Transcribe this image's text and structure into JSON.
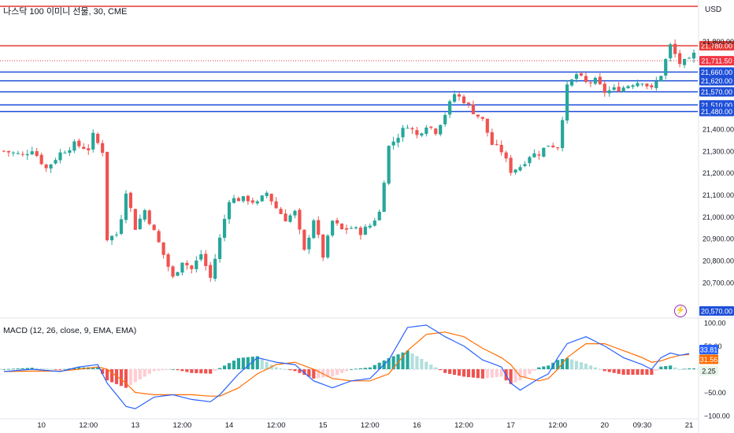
{
  "header": {
    "title": "나스닥 100 이미니 선물, 30, CME",
    "currency": "USD",
    "macd_title": "MACD (12, 26, close, 9, EMA, EMA)"
  },
  "colors": {
    "up": "#26a69a",
    "down": "#ef5350",
    "level_blue": "#1e4fd8",
    "level_red": "#e53935",
    "macd_line": "#2962ff",
    "signal_line": "#ff6d00",
    "hist_up": "#26a69a",
    "hist_up_weak": "#b2dfdb",
    "hist_down": "#ef5350",
    "hist_down_weak": "#ffcdd2"
  },
  "chart_data": [
    {
      "type": "candlestick",
      "title": "나스닥 100 이미니 선물, 30, CME",
      "ylim": [
        20570,
        21960
      ],
      "y_ticks": [
        20700,
        20800,
        20900,
        21000,
        21100,
        21200,
        21300,
        21400,
        21800
      ],
      "x_ticks": [
        "10",
        "12:00",
        "13",
        "12:00",
        "14",
        "12:00",
        "15",
        "12:00",
        "16",
        "12:00",
        "17",
        "12:00",
        "20",
        "09:30",
        "21"
      ],
      "x_tick_index": [
        8,
        18,
        28,
        38,
        48,
        58,
        68,
        78,
        88,
        98,
        108,
        118,
        128,
        136,
        146
      ],
      "candle_count": 148,
      "close_path": [
        [
          0,
          21300
        ],
        [
          4,
          21280
        ],
        [
          6,
          21310
        ],
        [
          9,
          21220
        ],
        [
          12,
          21290
        ],
        [
          15,
          21330
        ],
        [
          18,
          21310
        ],
        [
          19,
          21370
        ],
        [
          21,
          21300
        ],
        [
          22,
          20900
        ],
        [
          24,
          20920
        ],
        [
          25,
          21000
        ],
        [
          26,
          21120
        ],
        [
          28,
          20950
        ],
        [
          30,
          21030
        ],
        [
          33,
          20880
        ],
        [
          36,
          20720
        ],
        [
          38,
          20800
        ],
        [
          40,
          20760
        ],
        [
          42,
          20830
        ],
        [
          44,
          20720
        ],
        [
          46,
          20900
        ],
        [
          48,
          21080
        ],
        [
          52,
          21080
        ],
        [
          54,
          21060
        ],
        [
          56,
          21110
        ],
        [
          58,
          21040
        ],
        [
          60,
          20990
        ],
        [
          62,
          21020
        ],
        [
          64,
          20840
        ],
        [
          66,
          20990
        ],
        [
          68,
          20820
        ],
        [
          70,
          20980
        ],
        [
          72,
          20940
        ],
        [
          74,
          20950
        ],
        [
          76,
          20930
        ],
        [
          78,
          20960
        ],
        [
          80,
          21020
        ],
        [
          82,
          21320
        ],
        [
          86,
          21420
        ],
        [
          88,
          21370
        ],
        [
          90,
          21420
        ],
        [
          92,
          21390
        ],
        [
          94,
          21470
        ],
        [
          96,
          21560
        ],
        [
          98,
          21530
        ],
        [
          100,
          21480
        ],
        [
          102,
          21440
        ],
        [
          104,
          21330
        ],
        [
          106,
          21300
        ],
        [
          108,
          21210
        ],
        [
          110,
          21230
        ],
        [
          112,
          21280
        ],
        [
          114,
          21290
        ],
        [
          116,
          21330
        ],
        [
          118,
          21320
        ],
        [
          120,
          21590
        ],
        [
          122,
          21650
        ],
        [
          124,
          21610
        ],
        [
          126,
          21620
        ],
        [
          128,
          21570
        ],
        [
          132,
          21590
        ],
        [
          134,
          21610
        ],
        [
          136,
          21620
        ],
        [
          138,
          21580
        ],
        [
          140,
          21650
        ],
        [
          142,
          21780
        ],
        [
          144,
          21700
        ],
        [
          146,
          21710
        ],
        [
          147,
          21740
        ]
      ],
      "last_price": "21,711.50",
      "horizontal_levels": [
        {
          "value": 21960,
          "label": "",
          "color": "red"
        },
        {
          "value": 21780,
          "label": "21,780.00",
          "color": "red"
        },
        {
          "value": 21660,
          "label": "21,660.00",
          "color": "blue"
        },
        {
          "value": 21620,
          "label": "21,620.00",
          "color": "blue"
        },
        {
          "value": 21570,
          "label": "21,570.00",
          "color": "blue"
        },
        {
          "value": 21510,
          "label": "21,510.00",
          "color": "blue"
        },
        {
          "value": 21480,
          "label": "21,480.00",
          "color": "blue"
        }
      ],
      "bottom_label": "20,570.00",
      "grid": false
    },
    {
      "type": "line",
      "title": "MACD (12, 26, close, 9, EMA, EMA)",
      "ylim": [
        -100,
        100
      ],
      "y_ticks": [
        100,
        50,
        -50,
        -100
      ],
      "macd_path": [
        [
          0,
          -5
        ],
        [
          6,
          0
        ],
        [
          12,
          -5
        ],
        [
          16,
          5
        ],
        [
          20,
          10
        ],
        [
          22,
          -30
        ],
        [
          26,
          -80
        ],
        [
          28,
          -85
        ],
        [
          32,
          -60
        ],
        [
          36,
          -55
        ],
        [
          40,
          -65
        ],
        [
          44,
          -70
        ],
        [
          46,
          -55
        ],
        [
          50,
          -10
        ],
        [
          54,
          25
        ],
        [
          58,
          15
        ],
        [
          62,
          10
        ],
        [
          66,
          -25
        ],
        [
          70,
          -40
        ],
        [
          74,
          -25
        ],
        [
          78,
          -20
        ],
        [
          82,
          20
        ],
        [
          86,
          90
        ],
        [
          90,
          95
        ],
        [
          94,
          70
        ],
        [
          98,
          50
        ],
        [
          102,
          20
        ],
        [
          106,
          5
        ],
        [
          108,
          -30
        ],
        [
          110,
          -45
        ],
        [
          114,
          -20
        ],
        [
          116,
          -10
        ],
        [
          118,
          25
        ],
        [
          120,
          55
        ],
        [
          124,
          70
        ],
        [
          128,
          50
        ],
        [
          132,
          25
        ],
        [
          136,
          10
        ],
        [
          138,
          0
        ],
        [
          140,
          25
        ],
        [
          142,
          35
        ],
        [
          144,
          30
        ],
        [
          146,
          33.81
        ]
      ],
      "signal_path": [
        [
          0,
          -5
        ],
        [
          6,
          -4
        ],
        [
          12,
          -4
        ],
        [
          16,
          0
        ],
        [
          20,
          5
        ],
        [
          22,
          0
        ],
        [
          26,
          -30
        ],
        [
          28,
          -50
        ],
        [
          32,
          -55
        ],
        [
          36,
          -55
        ],
        [
          40,
          -55
        ],
        [
          44,
          -58
        ],
        [
          46,
          -58
        ],
        [
          50,
          -40
        ],
        [
          54,
          -10
        ],
        [
          58,
          10
        ],
        [
          62,
          15
        ],
        [
          66,
          0
        ],
        [
          70,
          -20
        ],
        [
          74,
          -25
        ],
        [
          78,
          -25
        ],
        [
          82,
          -10
        ],
        [
          86,
          40
        ],
        [
          90,
          75
        ],
        [
          94,
          80
        ],
        [
          98,
          70
        ],
        [
          102,
          45
        ],
        [
          106,
          25
        ],
        [
          108,
          10
        ],
        [
          110,
          -15
        ],
        [
          114,
          -25
        ],
        [
          116,
          -20
        ],
        [
          118,
          0
        ],
        [
          120,
          25
        ],
        [
          124,
          55
        ],
        [
          128,
          55
        ],
        [
          132,
          40
        ],
        [
          136,
          25
        ],
        [
          138,
          15
        ],
        [
          140,
          18
        ],
        [
          142,
          25
        ],
        [
          144,
          30
        ],
        [
          146,
          31.56
        ]
      ],
      "macd_value": "33.81",
      "signal_value": "31.56",
      "hist_value": "2.25"
    }
  ]
}
